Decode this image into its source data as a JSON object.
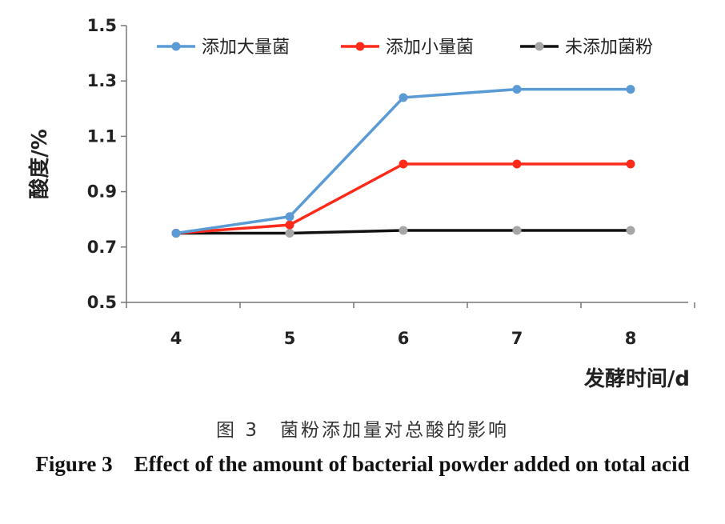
{
  "chart_data": {
    "type": "line",
    "categories": [
      "4",
      "5",
      "6",
      "7",
      "8"
    ],
    "series": [
      {
        "name": "添加大量菌",
        "color": "#5b9bd5",
        "values": [
          0.75,
          0.81,
          1.24,
          1.27,
          1.27
        ]
      },
      {
        "name": "添加小量菌",
        "color": "#ff2a1a",
        "values": [
          0.75,
          0.78,
          1.0,
          1.0,
          1.0
        ]
      },
      {
        "name": "未添加菌粉",
        "color": "#111111",
        "marker_color": "#a6a6a6",
        "values": [
          0.75,
          0.75,
          0.76,
          0.76,
          0.76
        ]
      }
    ],
    "ylim": [
      0.5,
      1.5
    ],
    "yticks": [
      "0.5",
      "0.7",
      "0.9",
      "1.1",
      "1.3",
      "1.5"
    ],
    "xlabel": "发酵时间/d",
    "ylabel": "酸度/%",
    "legend_position": "top",
    "grid": false
  },
  "caption": {
    "cn": "图 3　菌粉添加量对总酸的影响",
    "en": "Figure 3　Effect of the amount of bacterial powder added on total acid"
  }
}
